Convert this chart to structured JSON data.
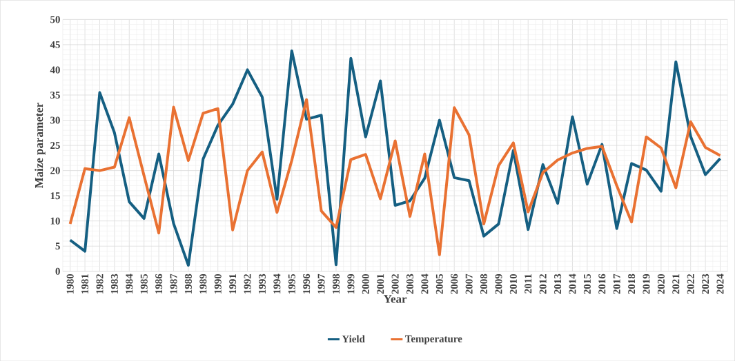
{
  "chart_data": {
    "type": "line",
    "xlabel": "Year",
    "ylabel": "Maize parameter",
    "categories": [
      "1980",
      "1981",
      "1982",
      "1983",
      "1984",
      "1985",
      "1986",
      "1987",
      "1988",
      "1989",
      "1990",
      "1991",
      "1992",
      "1993",
      "1994",
      "1995",
      "1996",
      "1997",
      "1998",
      "1999",
      "2000",
      "2001",
      "2002",
      "2003",
      "2004",
      "2005",
      "2006",
      "2007",
      "2008",
      "2009",
      "2010",
      "2011",
      "2012",
      "2013",
      "2014",
      "2015",
      "2016",
      "2017",
      "2018",
      "2019",
      "2020",
      "2021",
      "2022",
      "2023",
      "2024"
    ],
    "series": [
      {
        "name": "Yield",
        "color": "#155f82",
        "values": [
          6.2,
          4,
          35.5,
          27.5,
          13.8,
          10.5,
          23.3,
          9.5,
          1.2,
          22.3,
          29,
          33.2,
          40,
          34.6,
          14.3,
          43.8,
          30.2,
          31,
          1.3,
          42.3,
          26.7,
          37.8,
          13.1,
          14,
          18.5,
          30,
          18.6,
          18,
          7,
          9.4,
          24,
          8.3,
          21.2,
          13.5,
          30.7,
          17.3,
          25.2,
          8.5,
          21.4,
          20.1,
          15.9,
          41.6,
          26.8,
          19.2,
          22.4
        ]
      },
      {
        "name": "Temperature",
        "color": "#e97132",
        "values": [
          9.4,
          20.4,
          20,
          20.7,
          30.5,
          19,
          7.6,
          32.6,
          22,
          31.4,
          32.3,
          8.2,
          20,
          23.7,
          11.7,
          22,
          34.1,
          12,
          8.7,
          22.2,
          23.2,
          14.4,
          25.9,
          10.9,
          23.3,
          3.3,
          32.5,
          27.1,
          9.4,
          21,
          25.5,
          11.8,
          19.6,
          22.1,
          23.5,
          24.4,
          24.8,
          17,
          9.8,
          26.7,
          24.5,
          16.6,
          29.7,
          24.6,
          23
        ]
      }
    ],
    "ylim": [
      0,
      50
    ],
    "yticks": [
      0,
      5,
      10,
      15,
      20,
      25,
      30,
      35,
      40,
      45,
      50
    ],
    "grid": true,
    "legend": "bottom",
    "marker": "none",
    "line_style": "solid"
  }
}
